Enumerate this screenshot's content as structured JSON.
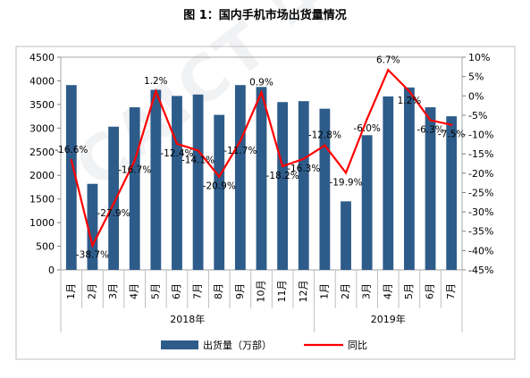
{
  "chart_data": {
    "type": "bar+line",
    "title": "图 1：国内手机市场出货量情况",
    "categories": [
      "1月",
      "2月",
      "3月",
      "4月",
      "5月",
      "6月",
      "7月",
      "8月",
      "9月",
      "10月",
      "11月",
      "12月",
      "1月",
      "2月",
      "3月",
      "4月",
      "5月",
      "6月",
      "7月"
    ],
    "year_groups": [
      {
        "label": "2018年",
        "count": 12
      },
      {
        "label": "2019年",
        "count": 7
      }
    ],
    "series": [
      {
        "name": "出货量（万部）",
        "type": "bar",
        "axis": "left",
        "color": "#2E5C8A",
        "values": [
          3910,
          1820,
          3030,
          3440,
          3810,
          3680,
          3710,
          3280,
          3910,
          3870,
          3550,
          3570,
          3410,
          1450,
          2850,
          3670,
          3860,
          3440,
          3250
        ]
      },
      {
        "name": "同比",
        "type": "line",
        "axis": "right",
        "color": "#FF0000",
        "values": [
          -16.6,
          -38.7,
          -27.9,
          -16.7,
          1.2,
          -12.4,
          -14.1,
          -20.9,
          -11.7,
          0.9,
          -18.2,
          -16.3,
          -12.8,
          -19.9,
          -6.0,
          6.7,
          1.2,
          -6.3,
          -7.5
        ],
        "labels": [
          "-16.6%",
          "-38.7%",
          "-27.9%",
          "-16.7%",
          "1.2%",
          "-12.4%",
          "-14.1%",
          "-20.9%",
          "-11.7%",
          "0.9%",
          "-18.2%",
          "-16.3%",
          "-12.8%",
          "-19.9%",
          "-6.0%",
          "6.7%",
          "1.2%",
          "-6.3%",
          "-7.5%"
        ]
      }
    ],
    "y_left": {
      "min": 0,
      "max": 4500,
      "step": 500
    },
    "y_right": {
      "min": -45,
      "max": 10,
      "step": 5,
      "suffix": "%"
    },
    "legend_position": "bottom",
    "watermark": "CAICT 中国信通院"
  }
}
